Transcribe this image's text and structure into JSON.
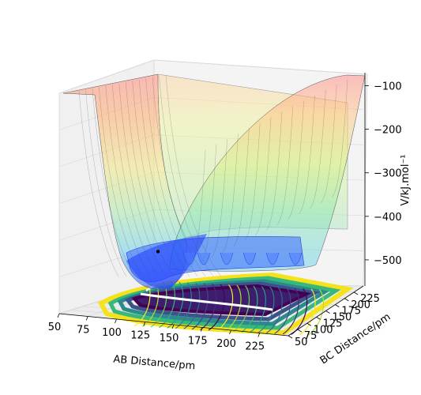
{
  "chart_data": {
    "type": "surface",
    "title": "",
    "xlabel": "AB Distance/pm",
    "ylabel": "BC Distance/pm",
    "zlabel": "V/kJ.mol⁻¹",
    "xlim": [
      50,
      250
    ],
    "ylim": [
      50,
      250
    ],
    "zlim": [
      -560,
      -70
    ],
    "x_ticks": [
      "50",
      "75",
      "100",
      "125",
      "150",
      "175",
      "200",
      "225"
    ],
    "y_ticks": [
      "50",
      "75",
      "100",
      "125",
      "150",
      "175",
      "200",
      "225"
    ],
    "z_ticks": [
      "−100",
      "−200",
      "−300",
      "−400",
      "−500"
    ],
    "colormap_surface": "jet",
    "colormap_contour": "viridis",
    "surface_alpha": 0.4,
    "minimum_point": {
      "x": 74,
      "y": 240,
      "z": -520
    },
    "grid": true
  }
}
